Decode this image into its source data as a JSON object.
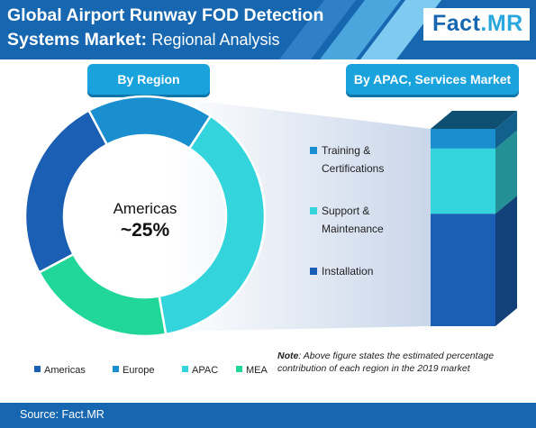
{
  "header": {
    "title_main": "Global Airport Runway FOD Detection",
    "title_line2_bold": "Systems Market:",
    "title_line2_rest": "Regional Analysis",
    "logo_fact": "Fact",
    "logo_mr": ".MR"
  },
  "labels": {
    "by_region": "By Region",
    "by_apac": "By APAC, Services Market"
  },
  "note": {
    "label": "Note",
    "text": ": Above figure states the estimated percentage contribution of each region in the 2019 market"
  },
  "footer": {
    "source": "Source: Fact.MR"
  },
  "colors": {
    "brand_blue": "#1667b0",
    "accent_cyan": "#1aa2dc",
    "americas": "#1a5fb4",
    "europe": "#1a8fd0",
    "apac": "#33d4dc",
    "mea": "#21d699"
  },
  "chart_data": [
    {
      "type": "pie",
      "variant": "donut",
      "center_label": "Americas",
      "center_value": "~25%",
      "categories": [
        "Americas",
        "Europe",
        "APAC",
        "MEA"
      ],
      "values": [
        25,
        17,
        38,
        20
      ],
      "legend_placement": "bottom",
      "slice_colors": [
        "#1a5fb4",
        "#1a8fd0",
        "#33d4dc",
        "#21d699"
      ]
    },
    {
      "type": "bar",
      "variant": "stacked-3d",
      "categories": [
        "APAC Services"
      ],
      "series": [
        {
          "name": "Installation",
          "values": [
            57
          ],
          "color": "#1a5fb4"
        },
        {
          "name": "Support & Maintenance",
          "values": [
            33
          ],
          "color": "#33d4dc"
        },
        {
          "name": "Training & Certifications",
          "values": [
            10
          ],
          "color": "#1a8fd0"
        }
      ],
      "legend_entries": [
        "Training & Certifications",
        "Support & Maintenance",
        "Installation"
      ],
      "legend_placement": "left"
    }
  ]
}
